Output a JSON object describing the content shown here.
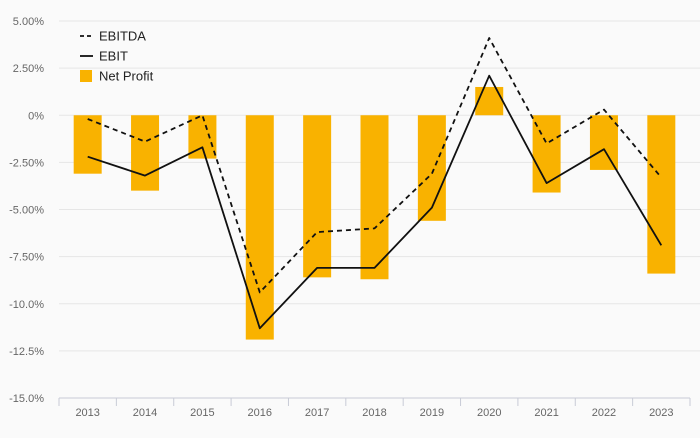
{
  "chart_data": {
    "type": "bar",
    "categories": [
      "2013",
      "2014",
      "2015",
      "2016",
      "2017",
      "2018",
      "2019",
      "2020",
      "2021",
      "2022",
      "2023"
    ],
    "ylim": [
      -15,
      5
    ],
    "yticks": [
      5,
      2.5,
      0,
      -2.5,
      -5,
      -7.5,
      -10,
      -12.5,
      -15
    ],
    "ytick_labels": [
      "5.00%",
      "2.50%",
      "0%",
      "-2.50%",
      "-5.00%",
      "-7.50%",
      "-10.0%",
      "-12.5%",
      "-15.0%"
    ],
    "grid": true,
    "legend_position": "top-left",
    "legend": [
      "EBITDA",
      "EBIT",
      "Net Profit"
    ],
    "series": [
      {
        "name": "EBITDA",
        "kind": "line",
        "style": "dashed",
        "color": "#111111",
        "values": [
          -0.2,
          -1.4,
          0.0,
          -9.4,
          -6.2,
          -6.0,
          -3.1,
          4.1,
          -1.5,
          0.3,
          -3.3
        ]
      },
      {
        "name": "EBIT",
        "kind": "line",
        "style": "solid",
        "color": "#111111",
        "values": [
          -2.2,
          -3.2,
          -1.7,
          -11.3,
          -8.1,
          -8.1,
          -4.9,
          2.1,
          -3.6,
          -1.8,
          -6.9
        ]
      },
      {
        "name": "Net Profit",
        "kind": "bar",
        "color": "#f9b200",
        "values": [
          -3.1,
          -4.0,
          -2.3,
          -11.9,
          -8.6,
          -8.7,
          -5.6,
          1.5,
          -4.1,
          -2.9,
          -8.4
        ]
      }
    ]
  }
}
